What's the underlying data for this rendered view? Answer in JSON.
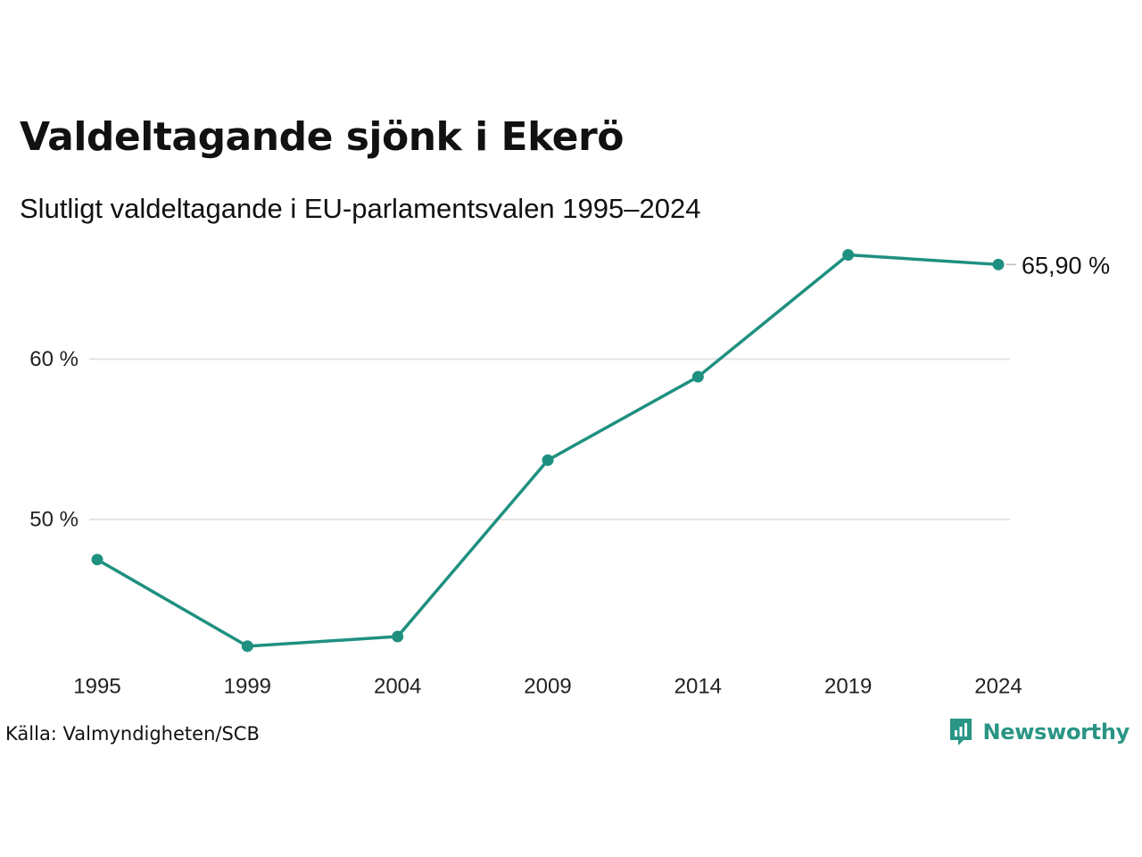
{
  "title": "Valdeltagande sjönk i Ekerö",
  "subtitle": "Slutligt valdeltagande i EU-parlamentsvalen 1995–2024",
  "source": "Källa: Valmyndigheten/SCB",
  "brand": {
    "name": "Newsworthy",
    "icon": "newsworthy-logo-icon",
    "color": "#2a9585"
  },
  "chart_data": {
    "type": "line",
    "title": "Valdeltagande sjönk i Ekerö",
    "subtitle": "Slutligt valdeltagande i EU-parlamentsvalen 1995–2024",
    "xlabel": "",
    "ylabel": "",
    "categories": [
      "1995",
      "1999",
      "2004",
      "2009",
      "2014",
      "2019",
      "2024"
    ],
    "series": [
      {
        "values": [
          47.5,
          42.1,
          42.7,
          53.7,
          58.9,
          66.5,
          65.9
        ],
        "color": "#1f9080"
      }
    ],
    "yticks": [
      50,
      60
    ],
    "ytick_labels": [
      "50 %",
      "60 %"
    ],
    "ylim": [
      41.2,
      68.2
    ],
    "end_label": "65,90 %",
    "grid": true,
    "gridline_color": "#e3e3e3",
    "legend": "none"
  }
}
